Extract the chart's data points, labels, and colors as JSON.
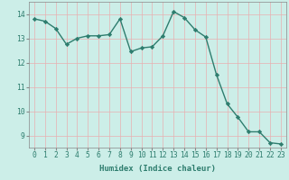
{
  "x": [
    0,
    1,
    2,
    3,
    4,
    5,
    6,
    7,
    8,
    9,
    10,
    11,
    12,
    13,
    14,
    15,
    16,
    17,
    18,
    19,
    20,
    21,
    22,
    23
  ],
  "y": [
    13.8,
    13.7,
    13.4,
    12.75,
    13.0,
    13.1,
    13.1,
    13.15,
    13.8,
    12.45,
    12.6,
    12.65,
    13.1,
    14.1,
    13.85,
    13.35,
    13.05,
    11.5,
    10.3,
    9.75,
    9.15,
    9.15,
    8.7,
    8.65
  ],
  "line_color": "#2e7d6e",
  "marker": "D",
  "markersize": 2.2,
  "linewidth": 1.0,
  "xlabel": "Humidex (Indice chaleur)",
  "xlim": [
    -0.5,
    23.5
  ],
  "ylim": [
    8.5,
    14.5
  ],
  "yticks": [
    9,
    10,
    11,
    12,
    13,
    14
  ],
  "xticks": [
    0,
    1,
    2,
    3,
    4,
    5,
    6,
    7,
    8,
    9,
    10,
    11,
    12,
    13,
    14,
    15,
    16,
    17,
    18,
    19,
    20,
    21,
    22,
    23
  ],
  "bg_color": "#cceee8",
  "grid_color_v": "#e8b0b0",
  "grid_color_h": "#e8b0b0",
  "tick_color": "#2e7d6e",
  "label_color": "#2e7d6e",
  "xlabel_fontsize": 6.5,
  "tick_fontsize": 5.8
}
